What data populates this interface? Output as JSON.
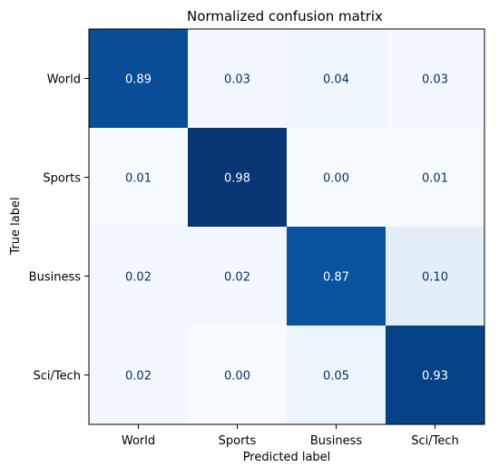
{
  "chart_data": {
    "type": "heatmap",
    "title": "Normalized confusion matrix",
    "xlabel": "Predicted label",
    "ylabel": "True label",
    "x_categories": [
      "World",
      "Sports",
      "Business",
      "Sci/Tech"
    ],
    "y_categories": [
      "World",
      "Sports",
      "Business",
      "Sci/Tech"
    ],
    "values": [
      [
        0.89,
        0.03,
        0.04,
        0.03
      ],
      [
        0.01,
        0.98,
        0.0,
        0.01
      ],
      [
        0.02,
        0.02,
        0.87,
        0.1
      ],
      [
        0.02,
        0.0,
        0.05,
        0.93
      ]
    ],
    "value_range": [
      0,
      1
    ],
    "colormap": "Blues",
    "colors": {
      "low": "#f7fbff",
      "high": "#08306b",
      "text_dark": "#08306b",
      "text_light": "#ffffff"
    },
    "grid": false
  }
}
